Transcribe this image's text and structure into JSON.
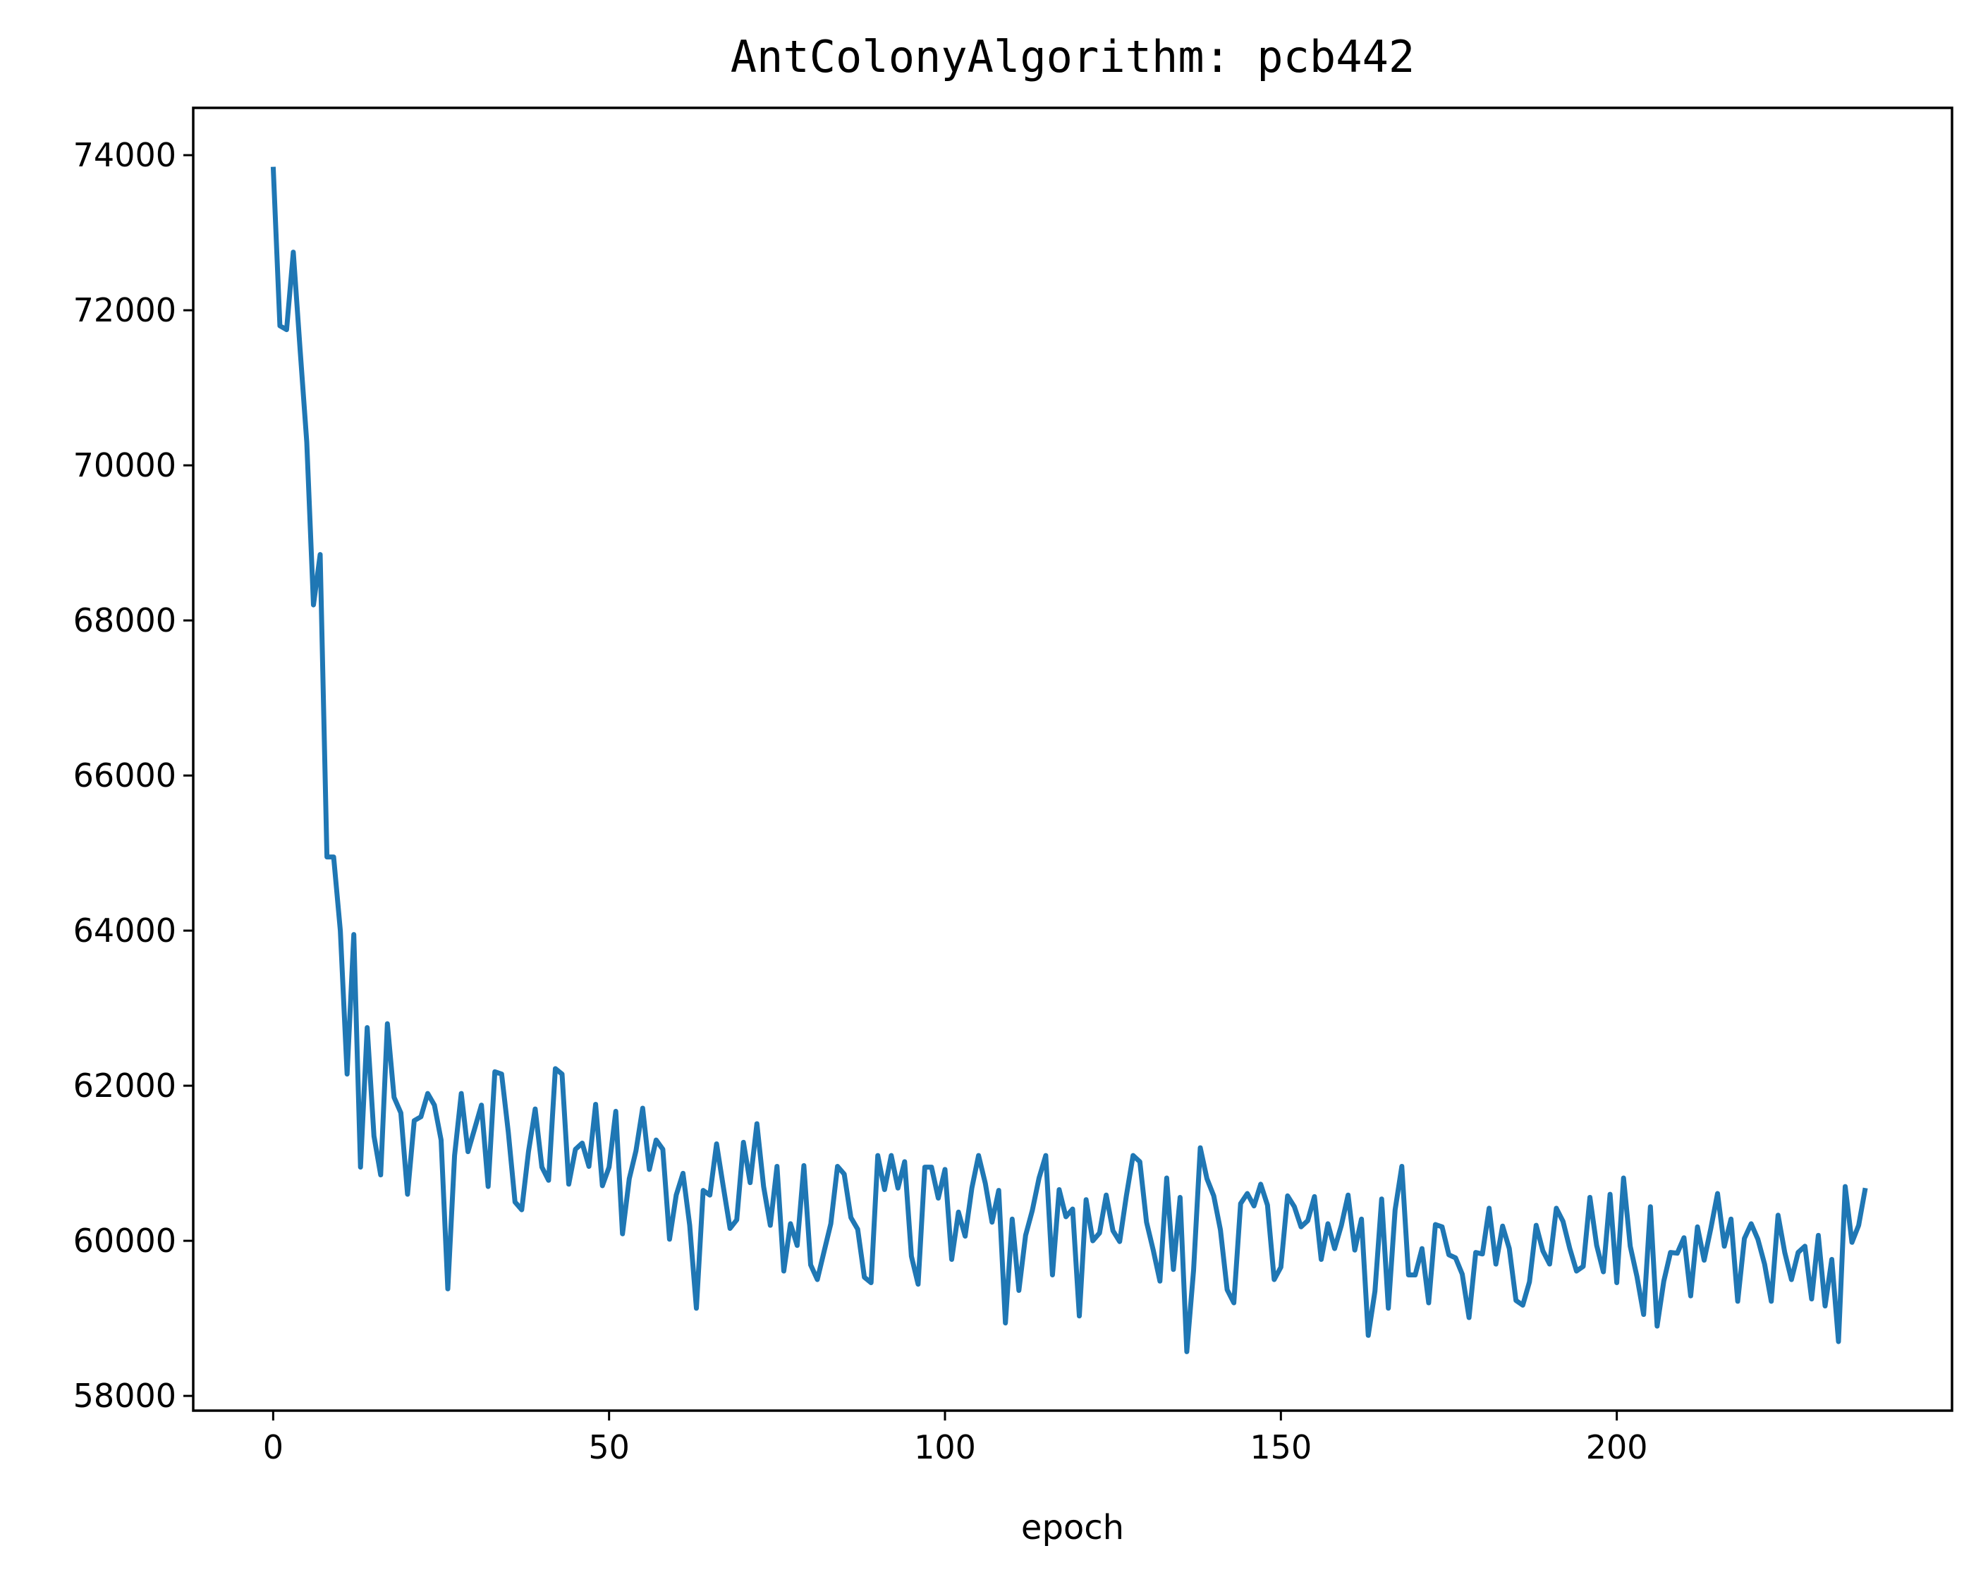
{
  "chart_data": {
    "type": "line",
    "title": "AntColonyAlgorithm: pcb442",
    "xlabel": "epoch",
    "ylabel": "",
    "xlim": [
      -11.9,
      249.9
    ],
    "ylim": [
      57810,
      74610
    ],
    "xticks": [
      0,
      50,
      100,
      150,
      200
    ],
    "yticks": [
      58000,
      60000,
      62000,
      64000,
      66000,
      68000,
      70000,
      72000,
      74000
    ],
    "grid": false,
    "legend": "none",
    "series": [
      {
        "color": "#1f77b4",
        "x_start": 0,
        "x_step": 1,
        "values": [
          73850,
          71800,
          71750,
          72750,
          71500,
          70300,
          68200,
          68850,
          64950,
          64950,
          64000,
          62150,
          63950,
          60950,
          62750,
          61350,
          60850,
          62800,
          61850,
          61650,
          60600,
          61550,
          61600,
          61900,
          61750,
          61300,
          59380,
          61100,
          61900,
          61150,
          61450,
          61750,
          60700,
          62180,
          62150,
          61400,
          60500,
          60400,
          61150,
          61700,
          60950,
          60780,
          62220,
          62150,
          60730,
          61180,
          61260,
          60960,
          61760,
          60710,
          60950,
          61670,
          60090,
          60800,
          61160,
          61710,
          60920,
          61300,
          61180,
          60020,
          60590,
          60870,
          60200,
          59130,
          60650,
          60590,
          61250,
          60700,
          60160,
          60270,
          61270,
          60750,
          61510,
          60700,
          60200,
          60960,
          59610,
          60220,
          59940,
          60970,
          59690,
          59500,
          59860,
          60220,
          60960,
          60860,
          60300,
          60150,
          59530,
          59460,
          61100,
          60660,
          61100,
          60680,
          61020,
          59800,
          59440,
          60950,
          60950,
          60550,
          60920,
          59760,
          60370,
          60060,
          60680,
          61100,
          60740,
          60240,
          60650,
          58940,
          60280,
          59360,
          60070,
          60390,
          60810,
          61100,
          59560,
          60660,
          60310,
          60410,
          59030,
          60530,
          60000,
          60100,
          60590,
          60130,
          59990,
          60580,
          61100,
          61020,
          60240,
          59880,
          59480,
          60810,
          59630,
          60560,
          58570,
          59620,
          61200,
          60800,
          60580,
          60140,
          59370,
          59200,
          60480,
          60610,
          60450,
          60730,
          60460,
          59500,
          59660,
          60580,
          60440,
          60180,
          60260,
          60570,
          59760,
          60220,
          59900,
          60200,
          60590,
          59880,
          60280,
          58780,
          59350,
          60540,
          59130,
          60400,
          60960,
          59560,
          59560,
          59900,
          59200,
          60210,
          60180,
          59820,
          59780,
          59570,
          59010,
          59850,
          59830,
          60420,
          59700,
          60190,
          59900,
          59230,
          59170,
          59470,
          60200,
          59870,
          59700,
          60420,
          60250,
          59900,
          59610,
          59670,
          60560,
          59940,
          59600,
          60600,
          59460,
          60810,
          59930,
          59540,
          59050,
          60440,
          58900,
          59480,
          59850,
          59840,
          60040,
          59290,
          60180,
          59750,
          60160,
          60610,
          59930,
          60280,
          59220,
          60030,
          60220,
          60020,
          59700,
          59220,
          60330,
          59850,
          59500,
          59850,
          59930,
          59250,
          60070,
          59160,
          59760,
          58700,
          60700,
          59980,
          60200,
          60680
        ]
      }
    ]
  }
}
